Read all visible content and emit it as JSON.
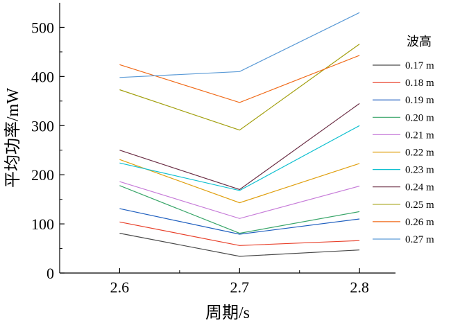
{
  "chart_data": {
    "type": "line",
    "xlabel": "周期/s",
    "ylabel": "平均功率/mW",
    "x": [
      2.6,
      2.7,
      2.8
    ],
    "x_ticks": [
      "2.6",
      "2.7",
      "2.8"
    ],
    "xlim": [
      2.55,
      2.83
    ],
    "ylim": [
      0,
      550
    ],
    "y_ticks": [
      0,
      100,
      200,
      300,
      400,
      500
    ],
    "grid": false,
    "legend_title": "波高",
    "legend_position": "right",
    "series": [
      {
        "name": "0.17 m",
        "color": "#4a4a4a",
        "values": [
          81,
          34,
          47
        ]
      },
      {
        "name": "0.18 m",
        "color": "#e8402a",
        "values": [
          104,
          56,
          66
        ]
      },
      {
        "name": "0.19 m",
        "color": "#1f5fbf",
        "values": [
          131,
          79,
          110
        ]
      },
      {
        "name": "0.20 m",
        "color": "#3aa66a",
        "values": [
          178,
          81,
          125
        ]
      },
      {
        "name": "0.21 m",
        "color": "#c77dd9",
        "values": [
          186,
          111,
          177
        ]
      },
      {
        "name": "0.22 m",
        "color": "#e0a010",
        "values": [
          231,
          143,
          223
        ]
      },
      {
        "name": "0.23 m",
        "color": "#10c0d0",
        "values": [
          224,
          168,
          300
        ]
      },
      {
        "name": "0.24 m",
        "color": "#6b2e45",
        "values": [
          250,
          170,
          345
        ]
      },
      {
        "name": "0.25 m",
        "color": "#a3a010",
        "values": [
          373,
          291,
          466
        ]
      },
      {
        "name": "0.26 m",
        "color": "#f06a18",
        "values": [
          424,
          347,
          443
        ]
      },
      {
        "name": "0.27 m",
        "color": "#5a9ad6",
        "values": [
          398,
          410,
          530
        ]
      }
    ]
  }
}
